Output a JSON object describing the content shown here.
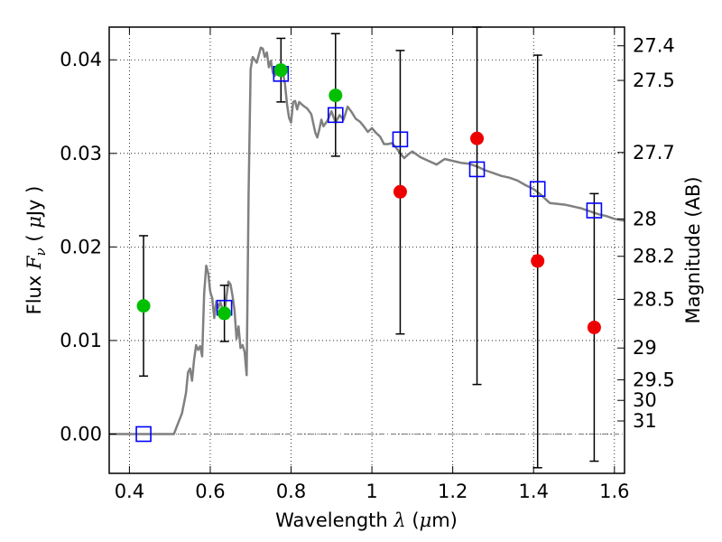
{
  "chart_data": {
    "type": "scatter",
    "title": "",
    "xlabel": {
      "prefix": "Wavelength  ",
      "symbol": "λ",
      "units_open": " (",
      "units_mu": "μ",
      "units_close": "m)"
    },
    "ylabel": {
      "prefix": "Flux  ",
      "symbol": "F",
      "sub": "ν",
      "units_open": "  (  ",
      "units_mu": "μ",
      "units_close": "Jy  )"
    },
    "y2label": "Magnitude (AB)",
    "xlim": [
      0.35,
      1.625
    ],
    "ylim": [
      -0.0042,
      0.0435
    ],
    "grid": true,
    "grid_style": "dotted",
    "x_ticks": [
      {
        "value": 0.4,
        "label": "0.4"
      },
      {
        "value": 0.6,
        "label": "0.6"
      },
      {
        "value": 0.8,
        "label": "0.8"
      },
      {
        "value": 1.0,
        "label": "1"
      },
      {
        "value": 1.2,
        "label": "1.2"
      },
      {
        "value": 1.4,
        "label": "1.4"
      },
      {
        "value": 1.6,
        "label": "1.6"
      }
    ],
    "y_ticks": [
      {
        "value": 0.0,
        "label": "0.00"
      },
      {
        "value": 0.01,
        "label": "0.01"
      },
      {
        "value": 0.02,
        "label": "0.02"
      },
      {
        "value": 0.03,
        "label": "0.03"
      },
      {
        "value": 0.04,
        "label": "0.04"
      }
    ],
    "y2_ticks": [
      {
        "flux": 0.0415,
        "label": "27.4"
      },
      {
        "flux": 0.0378,
        "label": "27.5"
      },
      {
        "flux": 0.0301,
        "label": "27.7"
      },
      {
        "flux": 0.023,
        "label": "28"
      },
      {
        "flux": 0.019,
        "label": "28.2"
      },
      {
        "flux": 0.0144,
        "label": "28.5"
      },
      {
        "flux": 0.0092,
        "label": "29"
      },
      {
        "flux": 0.0058,
        "label": "29.5"
      },
      {
        "flux": 0.0036,
        "label": "30"
      },
      {
        "flux": 0.0014,
        "label": "31"
      }
    ],
    "zero_line": {
      "y": 0.0,
      "style": "dash-dot",
      "color": "#777777"
    },
    "model_spectrum": {
      "color": "#808080",
      "x": [
        0.35,
        0.51,
        0.52,
        0.53,
        0.535,
        0.54,
        0.545,
        0.55,
        0.555,
        0.56,
        0.565,
        0.57,
        0.575,
        0.58,
        0.585,
        0.59,
        0.595,
        0.6,
        0.605,
        0.61,
        0.615,
        0.62,
        0.625,
        0.63,
        0.635,
        0.64,
        0.645,
        0.65,
        0.655,
        0.66,
        0.665,
        0.67,
        0.675,
        0.68,
        0.685,
        0.69,
        0.695,
        0.7,
        0.705,
        0.71,
        0.715,
        0.72,
        0.725,
        0.73,
        0.735,
        0.74,
        0.745,
        0.75,
        0.755,
        0.76,
        0.765,
        0.77,
        0.775,
        0.78,
        0.785,
        0.79,
        0.795,
        0.8,
        0.805,
        0.81,
        0.815,
        0.82,
        0.83,
        0.84,
        0.85,
        0.86,
        0.865,
        0.87,
        0.875,
        0.88,
        0.89,
        0.9,
        0.91,
        0.92,
        0.93,
        0.94,
        0.95,
        0.96,
        0.97,
        0.98,
        0.99,
        1.0,
        1.01,
        1.02,
        1.03,
        1.04,
        1.05,
        1.06,
        1.07,
        1.08,
        1.09,
        1.1,
        1.12,
        1.14,
        1.16,
        1.18,
        1.2,
        1.22,
        1.24,
        1.26,
        1.28,
        1.3,
        1.32,
        1.34,
        1.36,
        1.38,
        1.4,
        1.42,
        1.44,
        1.46,
        1.48,
        1.5,
        1.52,
        1.54,
        1.56,
        1.58,
        1.6,
        1.625
      ],
      "y": [
        0.0,
        0.0,
        0.0011,
        0.0022,
        0.0033,
        0.0044,
        0.0066,
        0.007,
        0.0057,
        0.0079,
        0.0095,
        0.009,
        0.0094,
        0.0083,
        0.015,
        0.018,
        0.0172,
        0.0152,
        0.0145,
        0.0124,
        0.0142,
        0.0135,
        0.0141,
        0.0134,
        0.0128,
        0.0147,
        0.0163,
        0.016,
        0.0148,
        0.0133,
        0.0102,
        0.0115,
        0.0092,
        0.0095,
        0.0088,
        0.0063,
        0.026,
        0.039,
        0.0403,
        0.04,
        0.0397,
        0.0405,
        0.0413,
        0.0412,
        0.0403,
        0.0408,
        0.0392,
        0.0399,
        0.0386,
        0.0383,
        0.0394,
        0.0394,
        0.0384,
        0.0386,
        0.0374,
        0.0352,
        0.0338,
        0.0333,
        0.0355,
        0.0356,
        0.0347,
        0.0355,
        0.0351,
        0.0348,
        0.0342,
        0.0322,
        0.0317,
        0.0326,
        0.0336,
        0.0329,
        0.0335,
        0.0345,
        0.0333,
        0.0341,
        0.0336,
        0.035,
        0.0344,
        0.0337,
        0.0334,
        0.0329,
        0.0323,
        0.0327,
        0.0322,
        0.0318,
        0.031,
        0.031,
        0.0311,
        0.0306,
        0.03,
        0.0295,
        0.0299,
        0.0302,
        0.0296,
        0.0292,
        0.0288,
        0.0294,
        0.0292,
        0.029,
        0.0289,
        0.0286,
        0.0282,
        0.0279,
        0.0276,
        0.0274,
        0.0271,
        0.0266,
        0.0262,
        0.0255,
        0.0247,
        0.0246,
        0.0245,
        0.0243,
        0.0241,
        0.0238,
        0.0235,
        0.0233,
        0.023,
        0.0228
      ]
    },
    "model_photometry": {
      "marker": "open-square",
      "color": "#0000ff",
      "points": [
        {
          "x": 0.435,
          "y": 0.0
        },
        {
          "x": 0.635,
          "y": 0.0135
        },
        {
          "x": 0.775,
          "y": 0.0385
        },
        {
          "x": 0.91,
          "y": 0.0341
        },
        {
          "x": 1.07,
          "y": 0.0315
        },
        {
          "x": 1.26,
          "y": 0.0283
        },
        {
          "x": 1.41,
          "y": 0.0262
        },
        {
          "x": 1.55,
          "y": 0.0239
        }
      ]
    },
    "observed_detections": {
      "marker": "filled-circle",
      "color": "#00c000",
      "points": [
        {
          "x": 0.435,
          "y": 0.0137,
          "err_low": 0.0062,
          "err_high": 0.0212
        },
        {
          "x": 0.635,
          "y": 0.0129,
          "err_low": 0.0099,
          "err_high": 0.0159
        },
        {
          "x": 0.775,
          "y": 0.0389,
          "err_low": 0.0355,
          "err_high": 0.0423
        },
        {
          "x": 0.91,
          "y": 0.0362,
          "err_low": 0.0297,
          "err_high": 0.0428
        }
      ]
    },
    "observed_ir": {
      "marker": "filled-circle",
      "color": "#ee0000",
      "points": [
        {
          "x": 1.07,
          "y": 0.0259,
          "err_low": 0.0107,
          "err_high": 0.041
        },
        {
          "x": 1.26,
          "y": 0.0316,
          "err_low": 0.0053,
          "err_high": 0.0435
        },
        {
          "x": 1.41,
          "y": 0.0185,
          "err_low": -0.0036,
          "err_high": 0.0405
        },
        {
          "x": 1.55,
          "y": 0.0114,
          "err_low": -0.0029,
          "err_high": 0.0257
        }
      ]
    }
  }
}
